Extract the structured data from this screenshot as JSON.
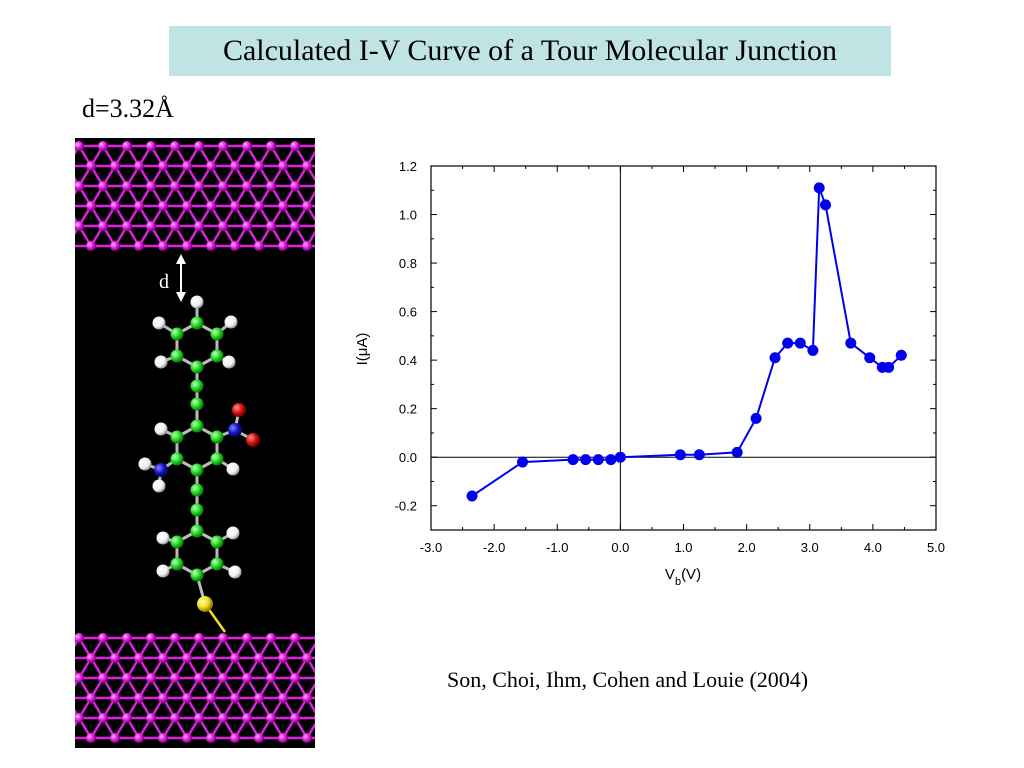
{
  "slide": {
    "title": "Calculated I-V Curve of a Tour Molecular Junction",
    "distance_label": "d=3.32Å",
    "gap_label": "d",
    "citation": "Son, Choi, Ihm, Cohen and Louie (2004)"
  },
  "colors": {
    "title_background": "#c0e4e4",
    "electrode_atoms": "#e020e0",
    "carbon": "#22dd22",
    "hydrogen": "#ffffff",
    "nitrogen": "#1515cc",
    "oxygen": "#dd1111",
    "sulfur": "#f0e020",
    "series": "#0000ee"
  },
  "chart_data": {
    "type": "line",
    "xlabel_main": "V",
    "xlabel_sub": "b",
    "xlabel_tail": "(V)",
    "ylabel": "I(μA)",
    "xlim": [
      -3.0,
      5.0
    ],
    "ylim": [
      -0.3,
      1.2
    ],
    "x_ticks": [
      "-3.0",
      "-2.0",
      "-1.0",
      "0.0",
      "1.0",
      "2.0",
      "3.0",
      "4.0",
      "5.0"
    ],
    "y_ticks": [
      "-0.2",
      "0.0",
      "0.2",
      "0.4",
      "0.6",
      "0.8",
      "1.0",
      "1.2"
    ],
    "series": [
      {
        "x": [
          -2.35,
          -1.55,
          -0.75,
          -0.55,
          -0.35,
          -0.15,
          0.0,
          0.95,
          1.25,
          1.85,
          2.15,
          2.45,
          2.65,
          2.85,
          3.05,
          3.15,
          3.25,
          3.65,
          3.95,
          4.15,
          4.25,
          4.45
        ],
        "y": [
          -0.16,
          -0.02,
          -0.01,
          -0.01,
          -0.01,
          -0.01,
          0.0,
          0.01,
          0.01,
          0.02,
          0.16,
          0.41,
          0.47,
          0.47,
          0.44,
          1.11,
          1.04,
          0.47,
          0.41,
          0.37,
          0.37,
          0.42
        ]
      }
    ]
  }
}
